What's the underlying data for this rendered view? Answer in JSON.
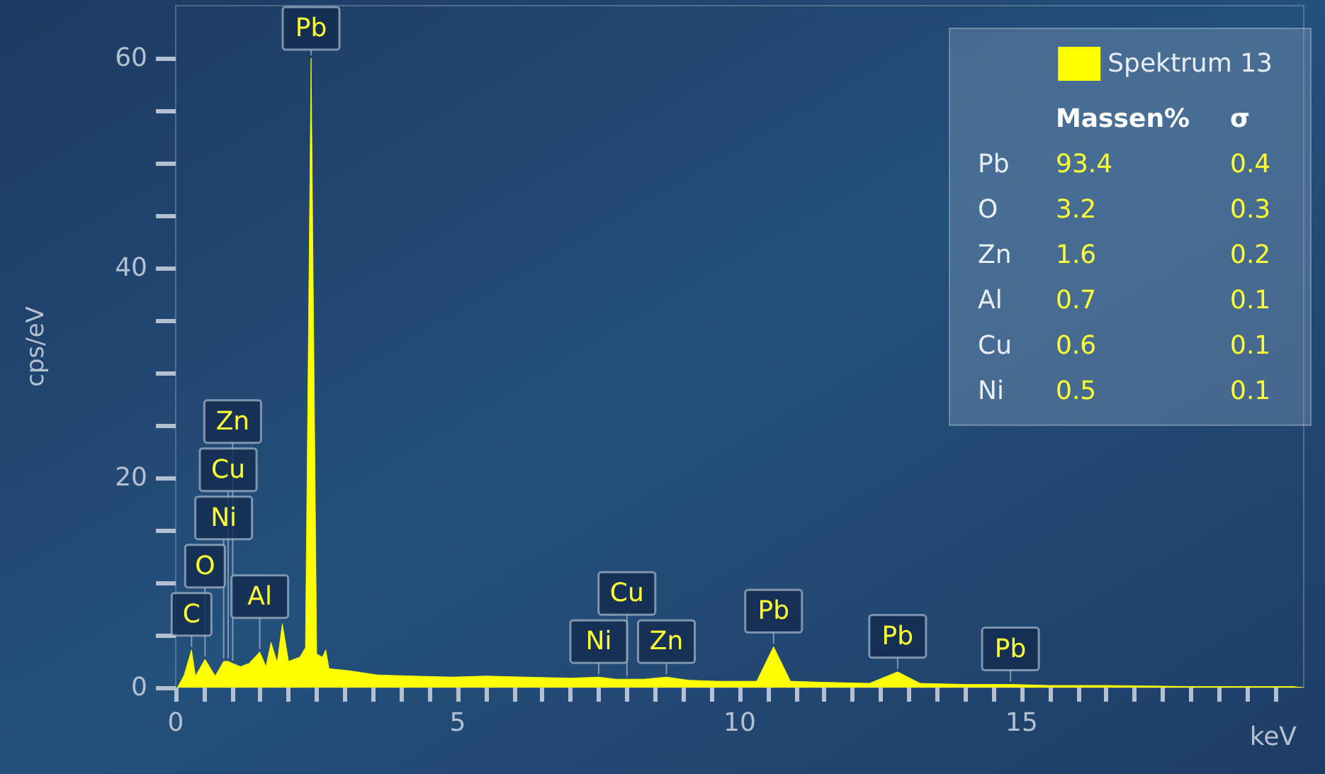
{
  "chart_data": {
    "type": "area",
    "xlabel": "keV",
    "ylabel": "cps/eV",
    "xlim": [
      0,
      20
    ],
    "ylim": [
      0,
      65
    ],
    "xticks": [
      0,
      {
        "value": 0.5,
        "label": null
      },
      {
        "value": 1,
        "label": null
      },
      {
        "value": 1.5,
        "label": null
      },
      {
        "value": 2,
        "label": null
      },
      {
        "value": 2.5,
        "label": null
      },
      {
        "value": 3,
        "label": null
      },
      {
        "value": 3.5,
        "label": null
      },
      {
        "value": 4,
        "label": null
      },
      {
        "value": 4.5,
        "label": null
      },
      5,
      {
        "value": 5.5,
        "label": null
      },
      {
        "value": 6,
        "label": null
      },
      {
        "value": 6.5,
        "label": null
      },
      {
        "value": 7,
        "label": null
      },
      {
        "value": 7.5,
        "label": null
      },
      {
        "value": 8,
        "label": null
      },
      {
        "value": 8.5,
        "label": null
      },
      {
        "value": 9,
        "label": null
      },
      {
        "value": 9.5,
        "label": null
      },
      10,
      {
        "value": 10.5,
        "label": null
      },
      {
        "value": 11,
        "label": null
      },
      {
        "value": 11.5,
        "label": null
      },
      {
        "value": 12,
        "label": null
      },
      {
        "value": 12.5,
        "label": null
      },
      {
        "value": 13,
        "label": null
      },
      {
        "value": 13.5,
        "label": null
      },
      {
        "value": 14,
        "label": null
      },
      {
        "value": 14.5,
        "label": null
      },
      15,
      {
        "value": 15.5,
        "label": null
      },
      {
        "value": 16,
        "label": null
      },
      {
        "value": 16.5,
        "label": null
      },
      {
        "value": 17,
        "label": null
      },
      {
        "value": 17.5,
        "label": null
      },
      {
        "value": 18,
        "label": null
      },
      {
        "value": 18.5,
        "label": null
      },
      {
        "value": 19,
        "label": null
      },
      {
        "value": 19.5,
        "label": null
      }
    ],
    "yticks": [
      0,
      {
        "value": 5,
        "label": null
      },
      {
        "value": 10,
        "label": null
      },
      {
        "value": 15,
        "label": null
      },
      20,
      {
        "value": 25,
        "label": null
      },
      {
        "value": 30,
        "label": null
      },
      {
        "value": 35,
        "label": null
      },
      40,
      {
        "value": 45,
        "label": null
      },
      {
        "value": 50,
        "label": null
      },
      {
        "value": 55,
        "label": null
      },
      60
    ],
    "legend": "top right",
    "grid": false,
    "marker": "none",
    "series": [
      {
        "name": "Spektrum 13",
        "color": "#ffff00",
        "x": [
          0.03,
          0.15,
          0.28,
          0.35,
          0.52,
          0.7,
          0.85,
          0.93,
          1.01,
          1.15,
          1.3,
          1.49,
          1.6,
          1.69,
          1.8,
          1.89,
          2.0,
          2.2,
          2.3,
          2.4,
          2.5,
          2.6,
          2.66,
          2.72,
          3.08,
          3.58,
          4.2,
          4.9,
          5.5,
          6.2,
          7.0,
          7.5,
          7.8,
          8.3,
          8.7,
          9.1,
          9.6,
          10.3,
          10.6,
          10.9,
          11.5,
          12.3,
          12.8,
          13.2,
          14.0,
          14.8,
          15.5,
          16.5,
          18.0,
          19.8,
          20.0
        ],
        "values": [
          0.0,
          1.2,
          3.6,
          1.1,
          2.7,
          1.1,
          2.5,
          2.5,
          2.3,
          2.0,
          2.3,
          3.4,
          2.0,
          4.3,
          2.4,
          6.1,
          2.5,
          2.9,
          3.8,
          60,
          3.2,
          2.9,
          3.6,
          1.8,
          1.6,
          1.2,
          1.1,
          1.0,
          1.1,
          1.0,
          0.9,
          1.0,
          0.8,
          0.8,
          1.0,
          0.7,
          0.6,
          0.6,
          3.9,
          0.6,
          0.5,
          0.4,
          1.5,
          0.4,
          0.3,
          0.3,
          0.2,
          0.2,
          0.1,
          0.1,
          0.0
        ]
      }
    ],
    "annotations": [
      {
        "text": "C",
        "x": 0.28,
        "y": 3.6
      },
      {
        "text": "O",
        "x": 0.52,
        "y": 2.7
      },
      {
        "text": "Ni",
        "x": 0.85,
        "y": 2.5
      },
      {
        "text": "Cu",
        "x": 0.93,
        "y": 2.5
      },
      {
        "text": "Zn",
        "x": 1.01,
        "y": 2.3
      },
      {
        "text": "Al",
        "x": 1.49,
        "y": 3.4
      },
      {
        "text": "Pb",
        "x": 2.4,
        "y": 60
      },
      {
        "text": "Ni",
        "x": 7.5,
        "y": 1.0
      },
      {
        "text": "Cu",
        "x": 8.0,
        "y": 0.8
      },
      {
        "text": "Zn",
        "x": 8.7,
        "y": 1.0
      },
      {
        "text": "Pb",
        "x": 10.6,
        "y": 3.9
      },
      {
        "text": "Pb",
        "x": 12.8,
        "y": 1.5
      },
      {
        "text": "Pb",
        "x": 14.8,
        "y": 0.3
      },
      "Massen%",
      "σ",
      "Pb",
      "93.4",
      "0.4",
      "O",
      "3.2",
      "0.3",
      "Zn",
      "1.6",
      "0.2",
      "Al",
      "0.7",
      "0.1",
      "Cu",
      "0.6",
      "0.1",
      "Ni",
      "0.5",
      "0.1"
    ]
  }
}
